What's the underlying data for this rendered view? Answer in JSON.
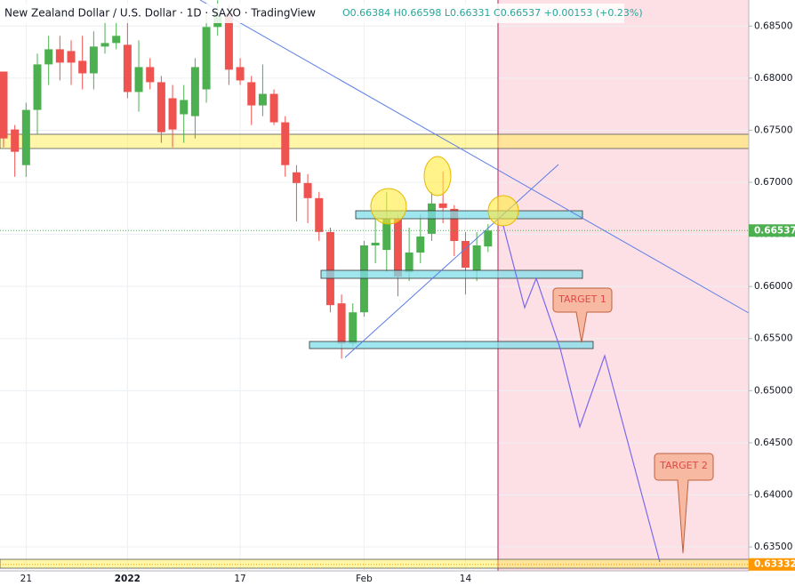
{
  "chart_data": {
    "type": "candlestick",
    "title": "New Zealand Dollar / U.S. Dollar · 1D · SAXO · TradingView",
    "ohlc_text": "O0.66384 H0.66598 L0.66331 C0.66537 +0.00153 (+0.23%)",
    "categories": [
      null,
      null,
      "21",
      null,
      null,
      null,
      null,
      null,
      null,
      null,
      null,
      "2022",
      null,
      null,
      null,
      null,
      null,
      null,
      null,
      null,
      null,
      "17",
      null,
      null,
      null,
      null,
      null,
      null,
      null,
      null,
      null,
      null,
      "Feb",
      null,
      null,
      null,
      null,
      null,
      null,
      null,
      null,
      "14",
      null,
      null
    ],
    "open": [
      0.68063,
      0.67507,
      0.67165,
      0.67695,
      0.68132,
      0.68277,
      0.6826,
      0.68166,
      0.68046,
      0.68303,
      0.68337,
      0.6832,
      0.67867,
      0.68106,
      0.67961,
      0.67807,
      0.67653,
      0.67635,
      0.67892,
      0.68491,
      0.6862,
      0.68106,
      0.67961,
      0.67738,
      0.67849,
      0.67576,
      0.67096,
      0.66993,
      0.66848,
      0.66523,
      0.65838,
      0.65453,
      0.65752,
      0.66394,
      0.66351,
      0.66651,
      0.66137,
      0.66326,
      0.66506,
      0.66797,
      0.66745,
      0.66437,
      0.66155,
      0.66384
    ],
    "high": [
      0.68063,
      0.6755,
      0.67764,
      0.68235,
      0.68406,
      0.68406,
      0.68363,
      0.68406,
      0.68449,
      0.6856,
      0.68534,
      0.68577,
      0.68363,
      0.68192,
      0.68021,
      0.67935,
      0.67935,
      0.68192,
      0.6862,
      0.68748,
      0.68705,
      0.68192,
      0.68021,
      0.68132,
      0.67892,
      0.67635,
      0.67165,
      0.67079,
      0.66908,
      0.66565,
      0.65923,
      0.65838,
      0.66437,
      0.66651,
      0.66908,
      0.66694,
      0.66565,
      0.66694,
      0.66908,
      0.67105,
      0.6678,
      0.66523,
      0.66523,
      0.66598
    ],
    "low": [
      0.67336,
      0.67053,
      0.67053,
      0.67464,
      0.67935,
      0.67978,
      0.67935,
      0.67892,
      0.67892,
      0.68235,
      0.68277,
      0.67807,
      0.67678,
      0.67892,
      0.67379,
      0.67336,
      0.67379,
      0.67421,
      0.67764,
      0.68406,
      0.67935,
      0.67935,
      0.6755,
      0.67635,
      0.6755,
      0.67053,
      0.66625,
      0.66608,
      0.66437,
      0.65752,
      0.65307,
      0.65427,
      0.65709,
      0.66223,
      0.66137,
      0.65906,
      0.66052,
      0.66223,
      0.66437,
      0.66608,
      0.66292,
      0.65923,
      0.66052,
      0.66331
    ],
    "close": [
      0.67421,
      0.67293,
      0.67695,
      0.68132,
      0.68277,
      0.68149,
      0.68149,
      0.68046,
      0.68303,
      0.68337,
      0.68406,
      0.67867,
      0.68106,
      0.67961,
      0.67481,
      0.67507,
      0.6779,
      0.68106,
      0.68491,
      0.6862,
      0.68081,
      0.67978,
      0.67738,
      0.67849,
      0.67576,
      0.67165,
      0.66993,
      0.66848,
      0.66523,
      0.65821,
      0.65453,
      0.65752,
      0.66394,
      0.6642,
      0.66651,
      0.66095,
      0.66326,
      0.6648,
      0.66797,
      0.66754,
      0.66437,
      0.6618,
      0.66394,
      0.66537
    ],
    "up_color": "#4caf50",
    "down_color": "#ef5350",
    "ylim": [
      0.6327,
      0.6875
    ],
    "yticks": [
      {
        "value": 0.685,
        "label": "0.68500"
      },
      {
        "value": 0.68,
        "label": "0.68000"
      },
      {
        "value": 0.675,
        "label": "0.67500"
      },
      {
        "value": 0.67,
        "label": "0.67000"
      },
      {
        "value": 0.665,
        "label": "0.66500"
      },
      {
        "value": 0.66,
        "label": "0.66000"
      },
      {
        "value": 0.655,
        "label": "0.65500"
      },
      {
        "value": 0.65,
        "label": "0.65000"
      },
      {
        "value": 0.645,
        "label": "0.64500"
      },
      {
        "value": 0.64,
        "label": "0.64000"
      },
      {
        "value": 0.635,
        "label": "0.63500"
      }
    ],
    "grid": true,
    "price_markers": [
      {
        "value": 0.66537,
        "color": "#4caf50"
      },
      {
        "value": 0.63332,
        "color": "#ff9800"
      }
    ],
    "annotations": [
      "TARGET 1",
      "TARGET 2"
    ]
  }
}
